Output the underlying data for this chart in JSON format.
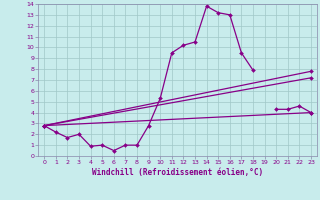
{
  "title": "",
  "xlabel": "Windchill (Refroidissement éolien,°C)",
  "ylabel": "",
  "background_color": "#c8ecec",
  "grid_color": "#a0c8c8",
  "line_color": "#880088",
  "spine_color": "#8888aa",
  "xlim": [
    -0.5,
    23.5
  ],
  "ylim": [
    0,
    14
  ],
  "xticks": [
    0,
    1,
    2,
    3,
    4,
    5,
    6,
    7,
    8,
    9,
    10,
    11,
    12,
    13,
    14,
    15,
    16,
    17,
    18,
    19,
    20,
    21,
    22,
    23
  ],
  "yticks": [
    0,
    1,
    2,
    3,
    4,
    5,
    6,
    7,
    8,
    9,
    10,
    11,
    12,
    13,
    14
  ],
  "series1_x": [
    0,
    1,
    2,
    3,
    4,
    5,
    6,
    7,
    8,
    9,
    10,
    11,
    12,
    13,
    14,
    15,
    16,
    17,
    18,
    19,
    20,
    21,
    22,
    23
  ],
  "series1_y": [
    2.8,
    2.2,
    1.7,
    2.0,
    0.9,
    1.0,
    0.5,
    1.0,
    1.0,
    2.8,
    5.3,
    9.5,
    10.2,
    10.5,
    13.8,
    13.2,
    13.0,
    9.5,
    7.9,
    null,
    4.3,
    4.3,
    4.6,
    4.0
  ],
  "series2_x": [
    0,
    23
  ],
  "series2_y": [
    2.8,
    7.8
  ],
  "series3_x": [
    0,
    23
  ],
  "series3_y": [
    2.8,
    7.2
  ],
  "series4_x": [
    0,
    23
  ],
  "series4_y": [
    2.8,
    4.0
  ],
  "marker": "D",
  "markersize": 2.0,
  "linewidth": 0.9,
  "tick_fontsize": 4.5,
  "xlabel_fontsize": 5.5
}
